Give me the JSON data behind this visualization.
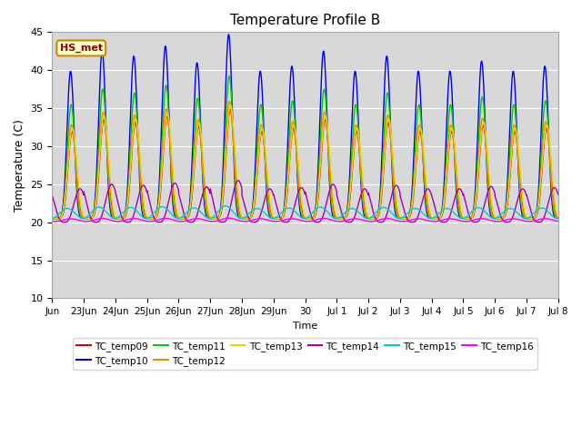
{
  "title": "Temperature Profile B",
  "ylabel": "Temperature (C)",
  "xlabel": "Time",
  "ylim": [
    10,
    45
  ],
  "annotation_text": "HS_met",
  "background_color": "#d8d8d8",
  "series": [
    {
      "name": "TC_temp09",
      "color": "#cc0000",
      "base": 20.5,
      "amp": 13.0,
      "phase": 0.05,
      "peak_power": 6
    },
    {
      "name": "TC_temp10",
      "color": "#0000ee",
      "base": 20.5,
      "amp": 22.0,
      "phase": 0.0,
      "peak_power": 8
    },
    {
      "name": "TC_temp11",
      "color": "#00cc00",
      "base": 20.5,
      "amp": 17.0,
      "phase": 0.02,
      "peak_power": 7
    },
    {
      "name": "TC_temp12",
      "color": "#ff8800",
      "base": 20.5,
      "amp": 14.0,
      "phase": 0.03,
      "peak_power": 6
    },
    {
      "name": "TC_temp13",
      "color": "#dddd00",
      "base": 20.5,
      "amp": 13.5,
      "phase": 0.06,
      "peak_power": 5
    },
    {
      "name": "TC_temp14",
      "color": "#aa00aa",
      "base": 20.0,
      "amp": 5.0,
      "phase": 0.3,
      "peak_power": 3
    },
    {
      "name": "TC_temp15",
      "color": "#00cccc",
      "base": 20.5,
      "amp": 1.5,
      "phase": -0.1,
      "peak_power": 2
    },
    {
      "name": "TC_temp16",
      "color": "#ff00ff",
      "base": 20.1,
      "amp": 0.4,
      "phase": 0.0,
      "peak_power": 2
    }
  ],
  "xtick_labels": [
    "Jun",
    "23Jun",
    "24Jun",
    "25Jun",
    "26Jun",
    "27Jun",
    "28Jun",
    "29Jun",
    "30",
    "Jul 1",
    "Jul 2",
    "Jul 3",
    "Jul 4",
    "Jul 5",
    "Jul 6",
    "Jul 7",
    "Jul 8"
  ],
  "legend_ncol_row1": 6,
  "peak_day_multipliers": [
    0.88,
    1.0,
    0.97,
    1.03,
    0.93,
    1.1,
    0.88,
    0.91,
    1.0,
    0.88,
    0.97,
    0.88,
    0.88,
    0.94,
    0.88,
    0.91
  ]
}
